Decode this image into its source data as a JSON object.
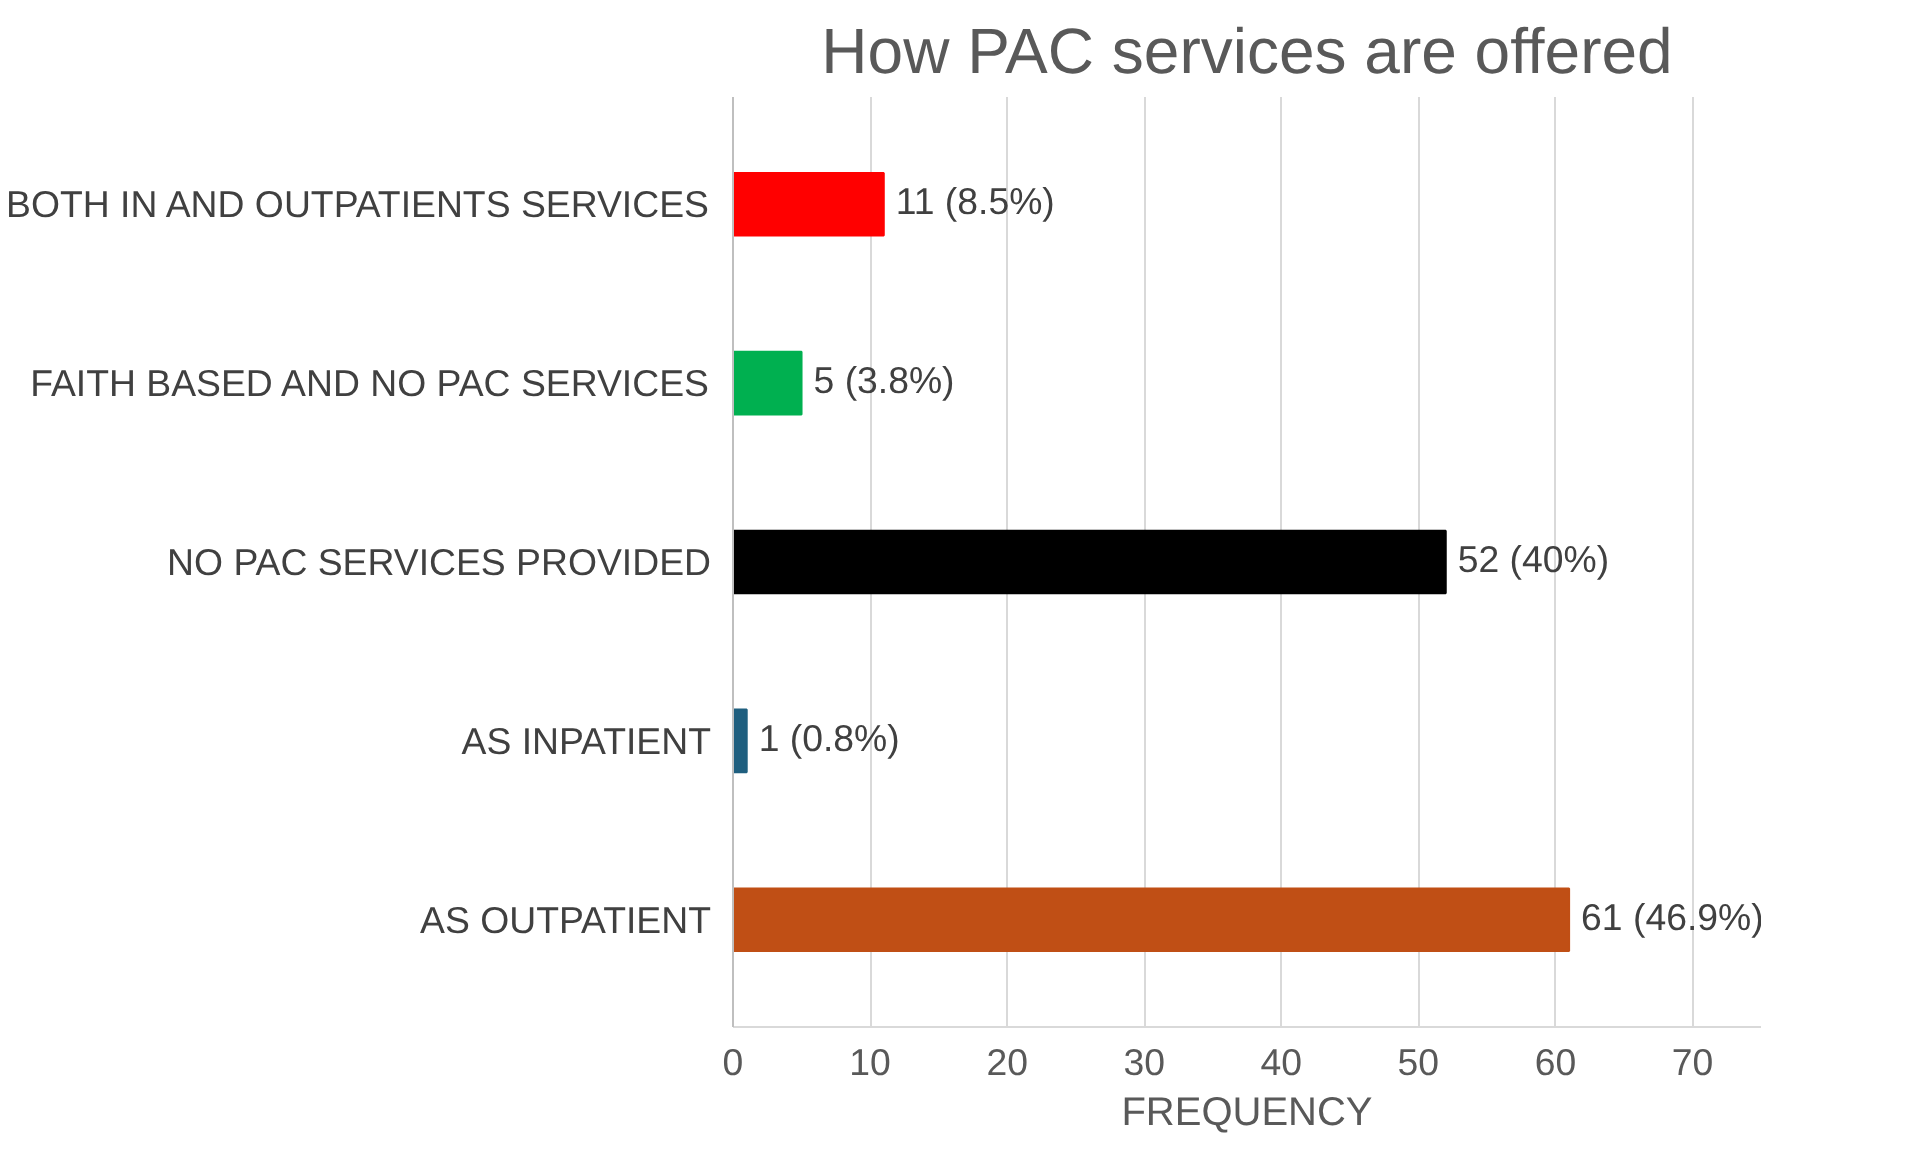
{
  "chart_data": {
    "type": "bar",
    "orientation": "horizontal",
    "title": "How PAC services are offered",
    "xlabel": "FREQUENCY",
    "categories": [
      "BOTH IN AND OUTPATIENTS SERVICES",
      "FAITH BASED AND NO PAC SERVICES",
      "NO PAC SERVICES PROVIDED",
      "AS INPATIENT",
      "AS OUTPATIENT"
    ],
    "values": [
      11,
      5,
      52,
      1,
      61
    ],
    "colors": [
      "#ff0000",
      "#00b050",
      "#000000",
      "#1f5f7f",
      "#c04f15"
    ],
    "value_labels": [
      "11 (8.5%)",
      "5 (3.8%)",
      "52 (40%)",
      "1 (0.8%)",
      "61 (46.9%)"
    ],
    "xlim": [
      0,
      75
    ],
    "xticks": [
      0,
      10,
      20,
      30,
      40,
      50,
      60,
      70
    ],
    "grid": "x"
  }
}
